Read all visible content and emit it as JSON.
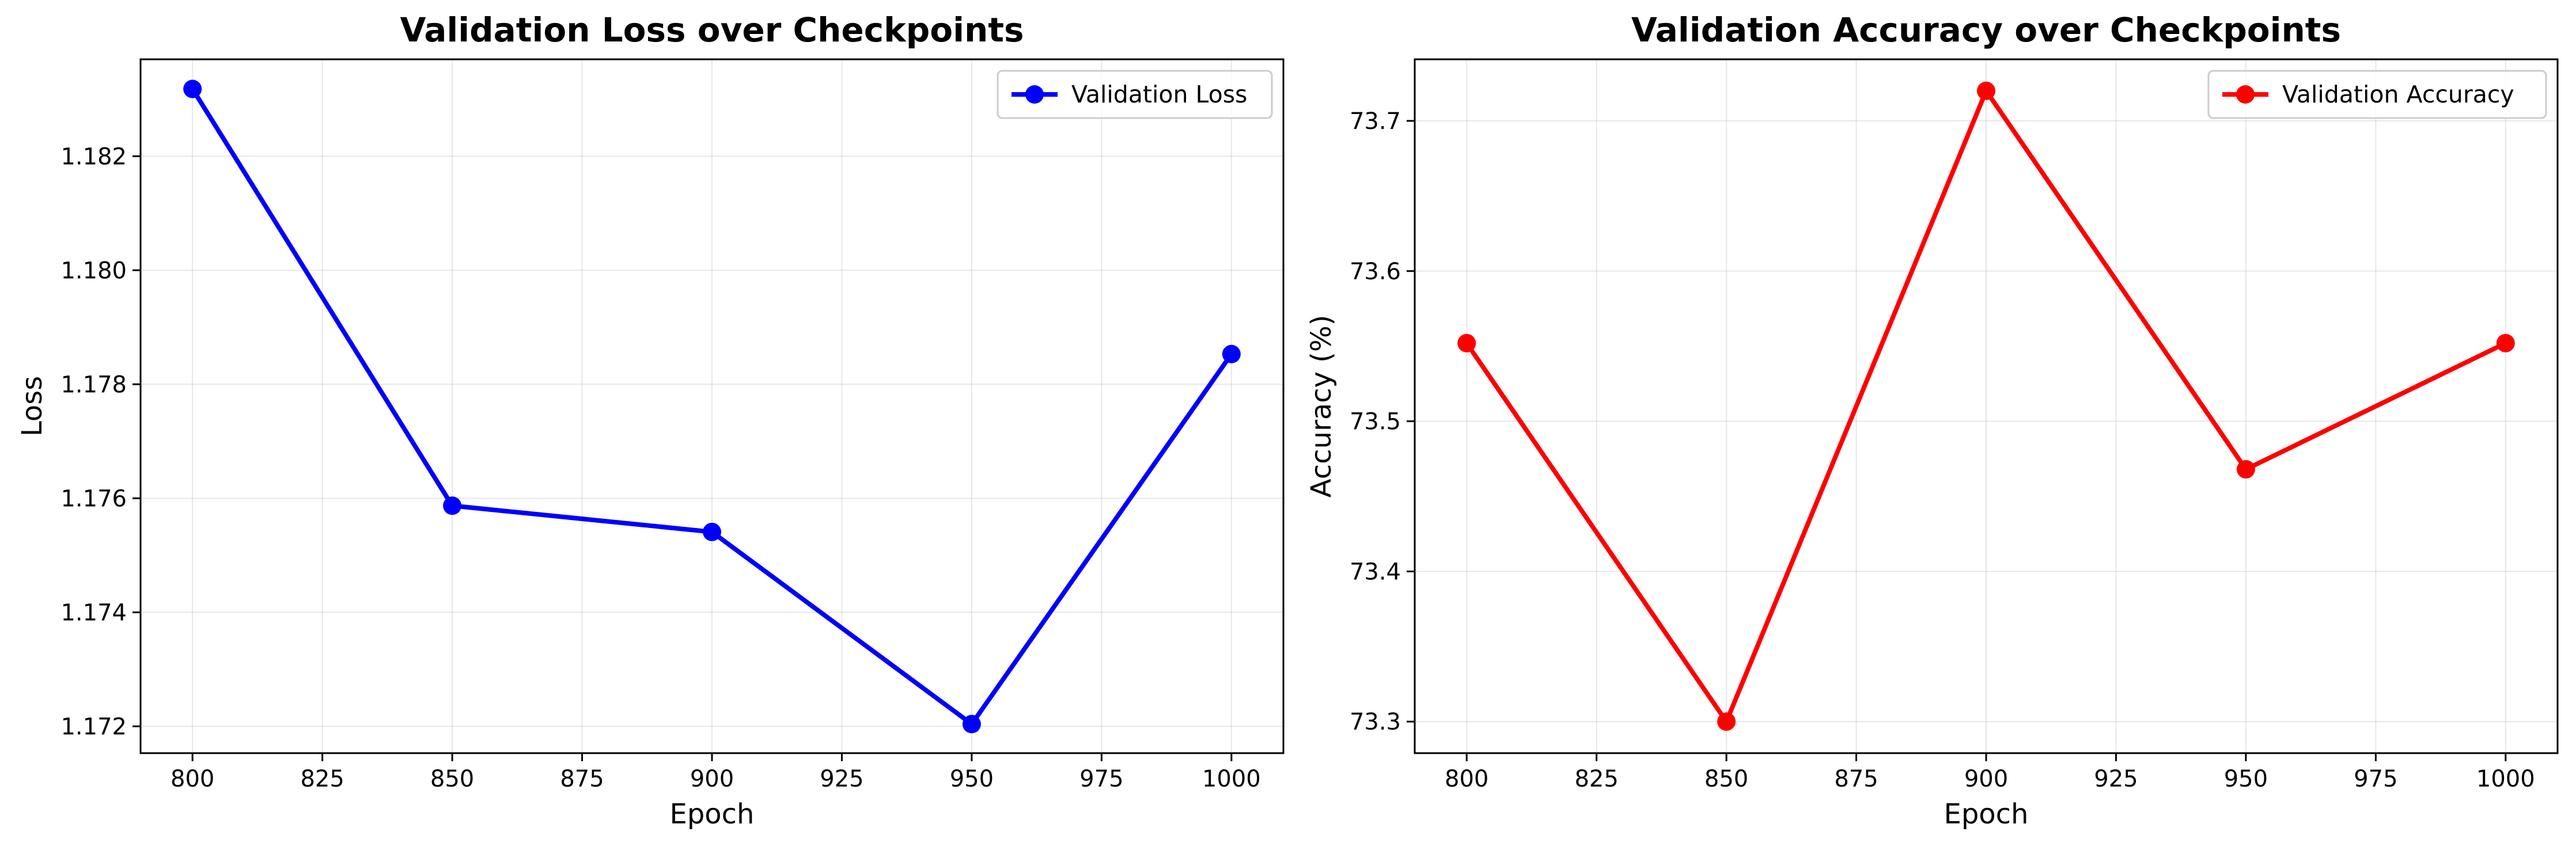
{
  "chart_data": [
    {
      "type": "line",
      "title": "Validation Loss over Checkpoints",
      "xlabel": "Epoch",
      "ylabel": "Loss",
      "xlim": [
        790,
        1010
      ],
      "ylim": [
        1.17153,
        1.1837
      ],
      "xticks": [
        800,
        825,
        850,
        875,
        900,
        925,
        950,
        975,
        1000
      ],
      "yticks": [
        1.172,
        1.174,
        1.176,
        1.178,
        1.18,
        1.182
      ],
      "ytick_decimals": 3,
      "grid": true,
      "legend_position": "top-right",
      "series": [
        {
          "name": "Validation Loss",
          "color": "#0000ff",
          "marker": "circle",
          "x": [
            800,
            850,
            900,
            950,
            1000
          ],
          "y": [
            1.18318,
            1.17587,
            1.17541,
            1.17204,
            1.17853
          ]
        }
      ]
    },
    {
      "type": "line",
      "title": "Validation Accuracy over Checkpoints",
      "xlabel": "Epoch",
      "ylabel": "Accuracy (%)",
      "xlim": [
        790,
        1010
      ],
      "ylim": [
        73.279,
        73.741
      ],
      "xticks": [
        800,
        825,
        850,
        875,
        900,
        925,
        950,
        975,
        1000
      ],
      "yticks": [
        73.3,
        73.4,
        73.5,
        73.6,
        73.7
      ],
      "ytick_decimals": 1,
      "grid": true,
      "legend_position": "top-right",
      "series": [
        {
          "name": "Validation Accuracy",
          "color": "#ff0000",
          "marker": "circle",
          "x": [
            800,
            850,
            900,
            950,
            1000
          ],
          "y": [
            73.552,
            73.3,
            73.72,
            73.468,
            73.552
          ]
        }
      ]
    }
  ]
}
